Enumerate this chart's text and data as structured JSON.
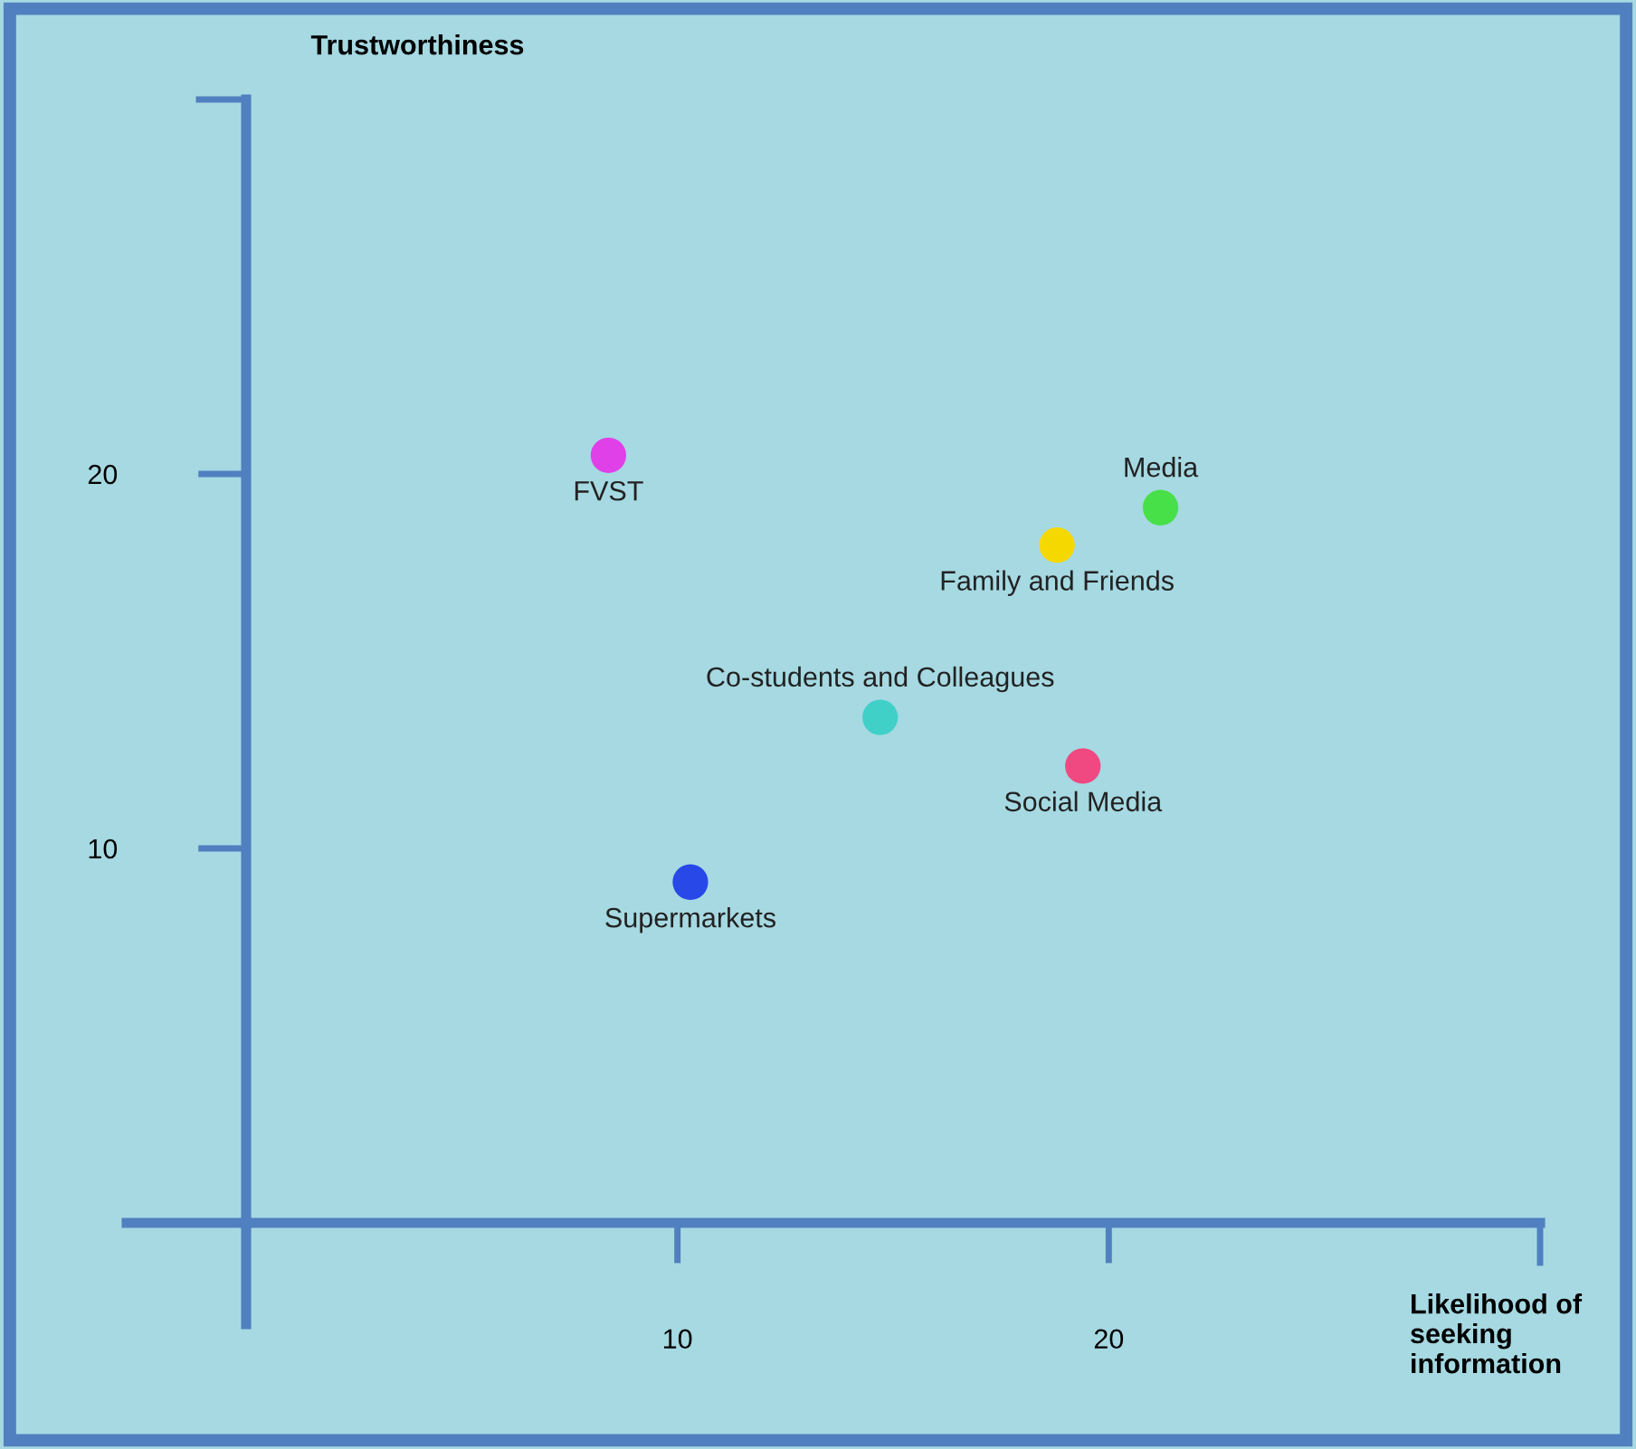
{
  "chart_data": {
    "type": "scatter",
    "xlabel": "Likelihood of seeking information",
    "ylabel": "Trustworthiness",
    "series": [
      {
        "name": "FVST",
        "color": "#e040e8",
        "x": [
          8.4
        ],
        "values": [
          20.5
        ]
      },
      {
        "name": "Media",
        "color": "#48e048",
        "x": [
          21.2
        ],
        "values": [
          19.1
        ]
      },
      {
        "name": "Family and Friends",
        "color": "#f5d800",
        "x": [
          18.8
        ],
        "values": [
          18.1
        ]
      },
      {
        "name": "Co-students and Colleagues",
        "color": "#40d0c8",
        "x": [
          14.7
        ],
        "values": [
          13.5
        ]
      },
      {
        "name": "Social Media",
        "color": "#f04880",
        "x": [
          19.4
        ],
        "values": [
          12.2
        ]
      },
      {
        "name": "Supermarkets",
        "color": "#2848e8",
        "x": [
          10.3
        ],
        "values": [
          9.1
        ]
      }
    ],
    "xlim": [
      0,
      30
    ],
    "ylim": [
      0,
      30
    ],
    "xticks": [
      10,
      20
    ],
    "yticks": [
      10,
      20
    ],
    "grid": false,
    "legend": false,
    "marker": "circle"
  }
}
